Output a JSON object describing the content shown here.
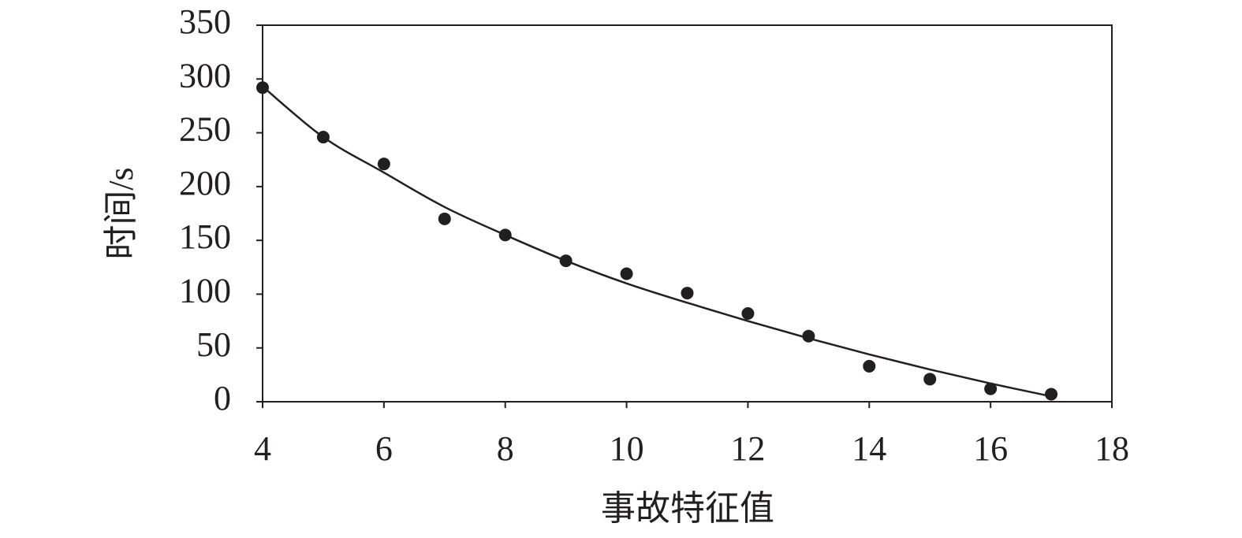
{
  "chart_data": {
    "type": "scatter",
    "x_label": "事故特征值",
    "y_label": "时间/s",
    "x": [
      4,
      5,
      6,
      7,
      8,
      9,
      10,
      11,
      12,
      13,
      14,
      15,
      16,
      17
    ],
    "series": [
      {
        "type": "scatter",
        "color": "#231f20",
        "values": [
          292,
          246,
          221,
          170,
          155,
          131,
          119,
          101,
          82,
          61,
          33,
          21,
          12,
          7
        ]
      },
      {
        "type": "line",
        "color": "#231f20",
        "values": [
          293,
          246,
          213,
          181,
          155,
          131,
          110,
          92,
          75,
          59,
          44,
          30,
          17,
          5
        ]
      }
    ],
    "xlim": [
      4,
      18
    ],
    "xticks": [
      4,
      6,
      8,
      10,
      12,
      14,
      16,
      18
    ],
    "ylim": [
      0,
      350
    ],
    "yticks": [
      0,
      50,
      100,
      150,
      200,
      250,
      300,
      350
    ]
  }
}
